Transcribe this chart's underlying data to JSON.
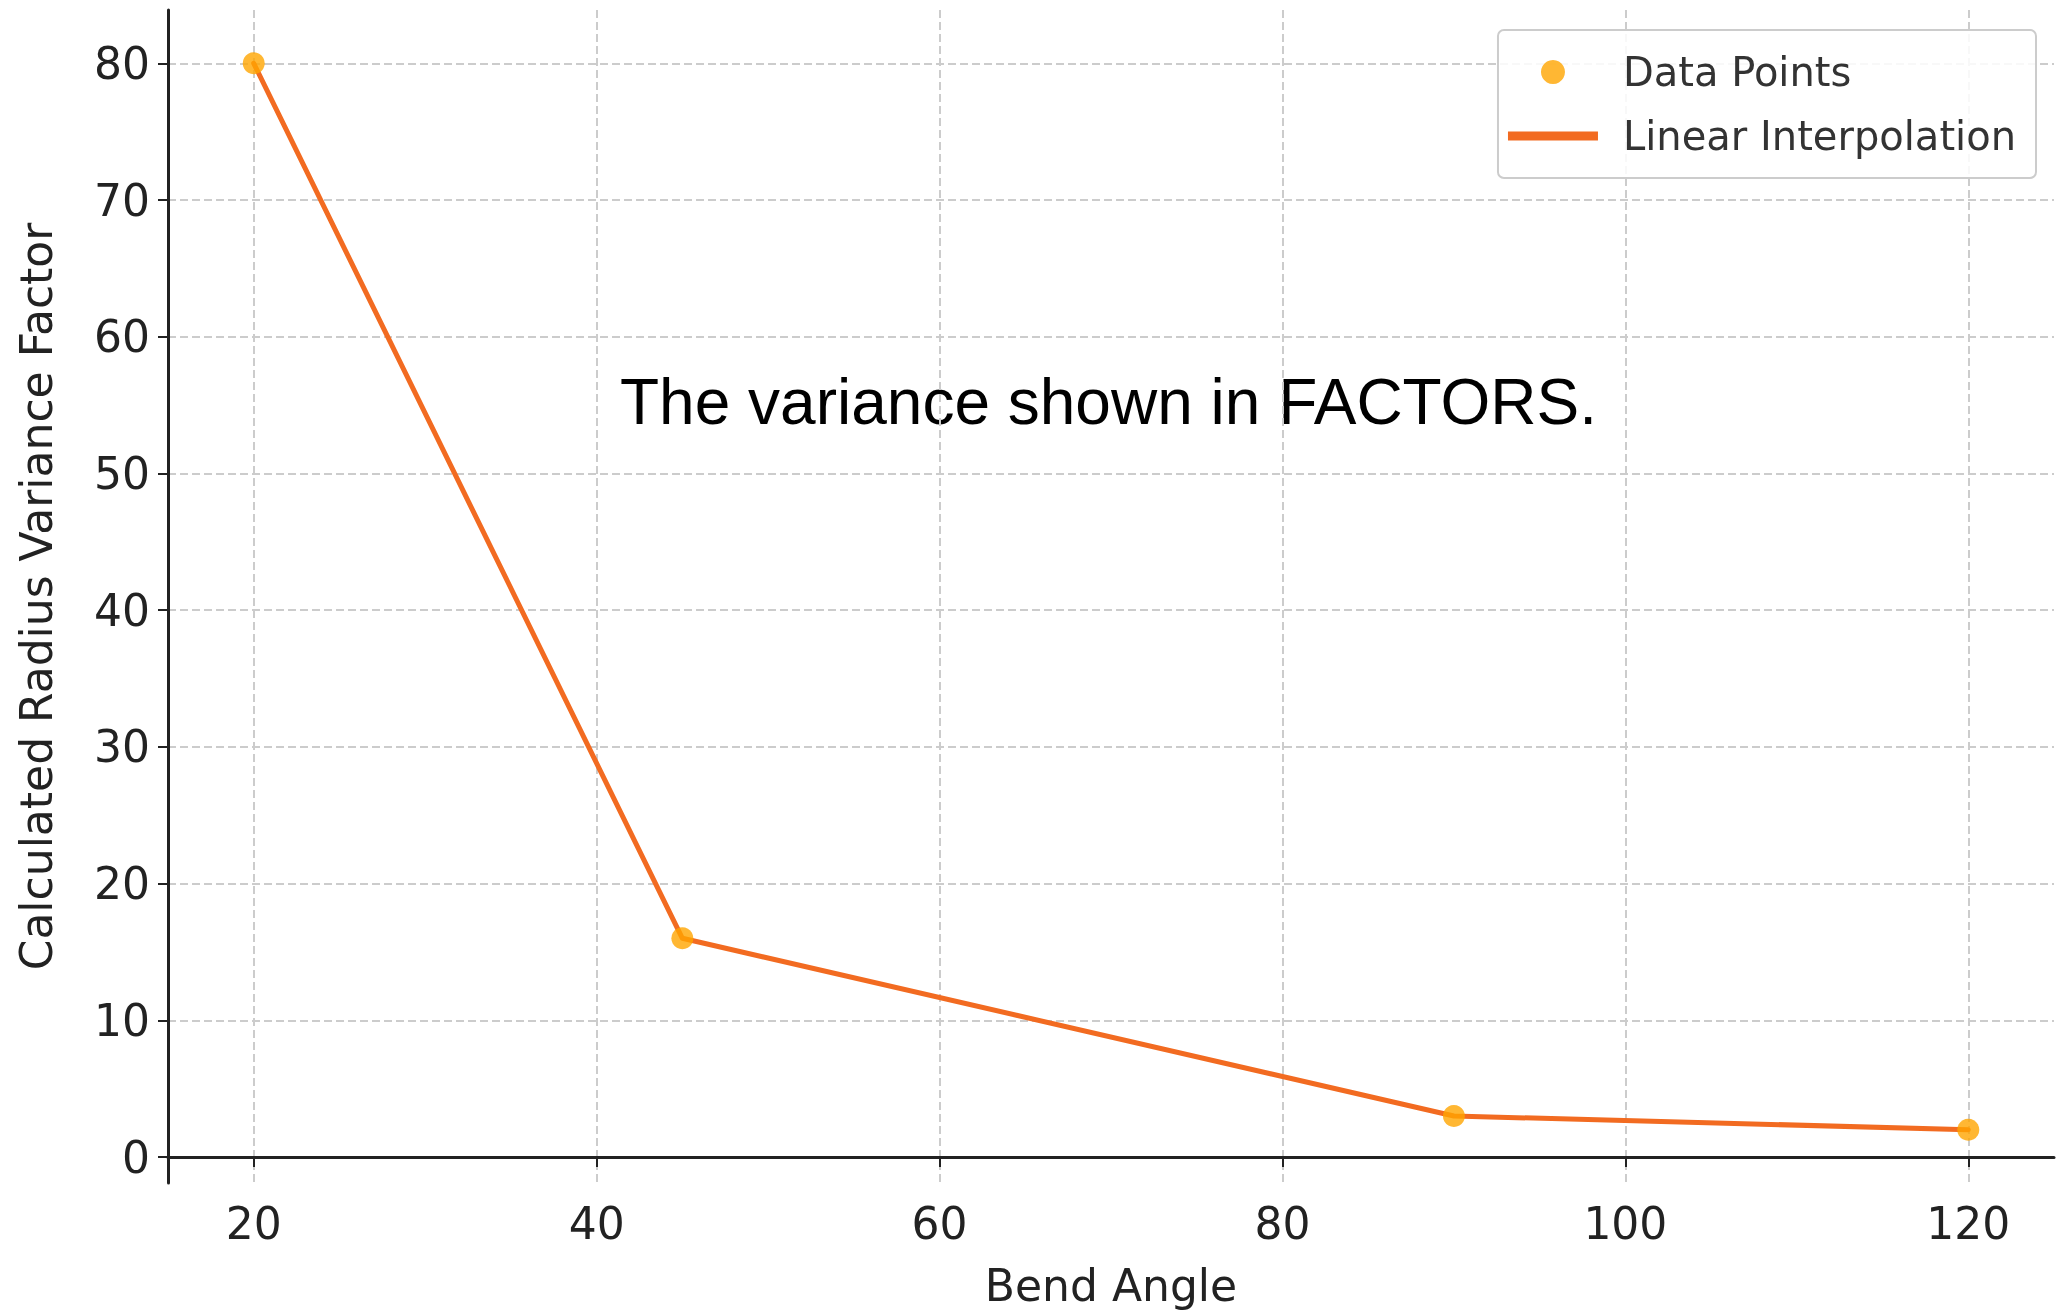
{
  "chart_data": {
    "type": "line",
    "xlabel": "Bend Angle",
    "ylabel": "Calculated Radius Variance Factor",
    "x": [
      20,
      45,
      90,
      120
    ],
    "series": [
      {
        "name": "Data Points",
        "type": "scatter",
        "color": "#ffa500",
        "values": [
          80,
          16,
          3,
          2
        ],
        "marker": "circle"
      },
      {
        "name": "Linear Interpolation",
        "type": "line",
        "color": "#f26b21",
        "values": [
          80,
          16,
          3,
          2
        ],
        "marker": "none",
        "line_style": "solid"
      }
    ],
    "xlim": [
      15,
      125
    ],
    "xticks": [
      20,
      40,
      60,
      80,
      100,
      120
    ],
    "ylim": [
      -1.9,
      83.9
    ],
    "yticks": [
      0,
      10,
      20,
      30,
      40,
      50,
      60,
      70,
      80
    ],
    "grid": true,
    "legend": "top right",
    "annotations": [
      "The variance shown in FACTORS."
    ]
  }
}
